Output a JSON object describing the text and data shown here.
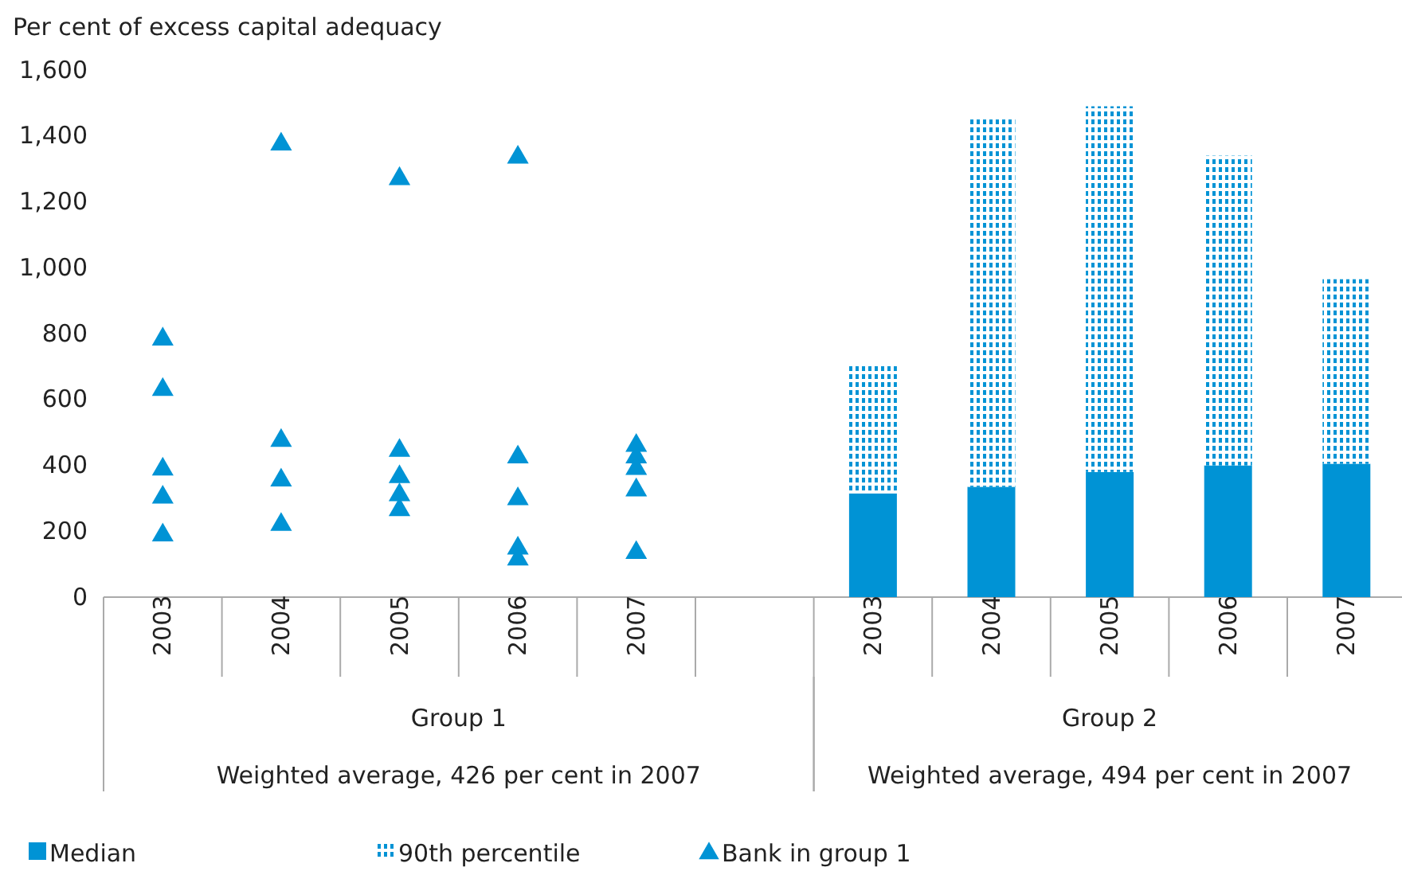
{
  "chart_data": {
    "type": "bar",
    "ylabel": "Per cent of excess capital adequacy",
    "categories": [
      "2003",
      "2004",
      "2005",
      "2006",
      "2007",
      null,
      "2003",
      "2004",
      "2005",
      "2006",
      "2007"
    ],
    "stacked": true,
    "series": [
      {
        "name": "Median",
        "color": "#0093d5",
        "values": [
          null,
          null,
          null,
          null,
          null,
          null,
          315,
          335,
          380,
          400,
          405
        ]
      },
      {
        "name": "90th percentile",
        "color": "#0093d5",
        "values": [
          null,
          null,
          null,
          null,
          null,
          null,
          395,
          1115,
          1110,
          940,
          560
        ]
      },
      {
        "name": "Bank in group 1",
        "type": "scatter",
        "color": "#0093d5",
        "values": [
          783,
          1375,
          1270,
          1335,
          460,
          null,
          null,
          null,
          null,
          null,
          null
        ]
      },
      {
        "type": "scatter",
        "color": "#0093d5",
        "values": [
          630,
          475,
          445,
          425,
          425,
          null,
          null,
          null,
          null,
          null,
          null
        ]
      },
      {
        "type": "scatter",
        "color": "#0093d5",
        "values": [
          388,
          355,
          365,
          298,
          390,
          null,
          null,
          null,
          null,
          null,
          null
        ]
      },
      {
        "type": "scatter",
        "color": "#0093d5",
        "values": [
          303,
          220,
          310,
          148,
          325,
          null,
          null,
          null,
          null,
          null,
          null
        ]
      },
      {
        "type": "scatter",
        "color": "#0093d5",
        "values": [
          188,
          null,
          265,
          115,
          135,
          null,
          null,
          null,
          null,
          null,
          null
        ]
      }
    ],
    "marker": "triangle",
    "ylim": [
      0,
      1600
    ],
    "yticks": [
      0,
      200,
      400,
      600,
      800,
      {
        "value": 1000,
        "label": "1,000"
      },
      {
        "value": 1200,
        "label": "1,200"
      },
      {
        "value": 1400,
        "label": "1,400"
      },
      {
        "value": 1600,
        "label": "1,600"
      }
    ],
    "annotations": [
      "Group 1",
      "Weighted average, 426 per cent in 2007",
      "Group 2",
      "Weighted average, 494 per cent in 2007"
    ],
    "legend": "bottom"
  }
}
